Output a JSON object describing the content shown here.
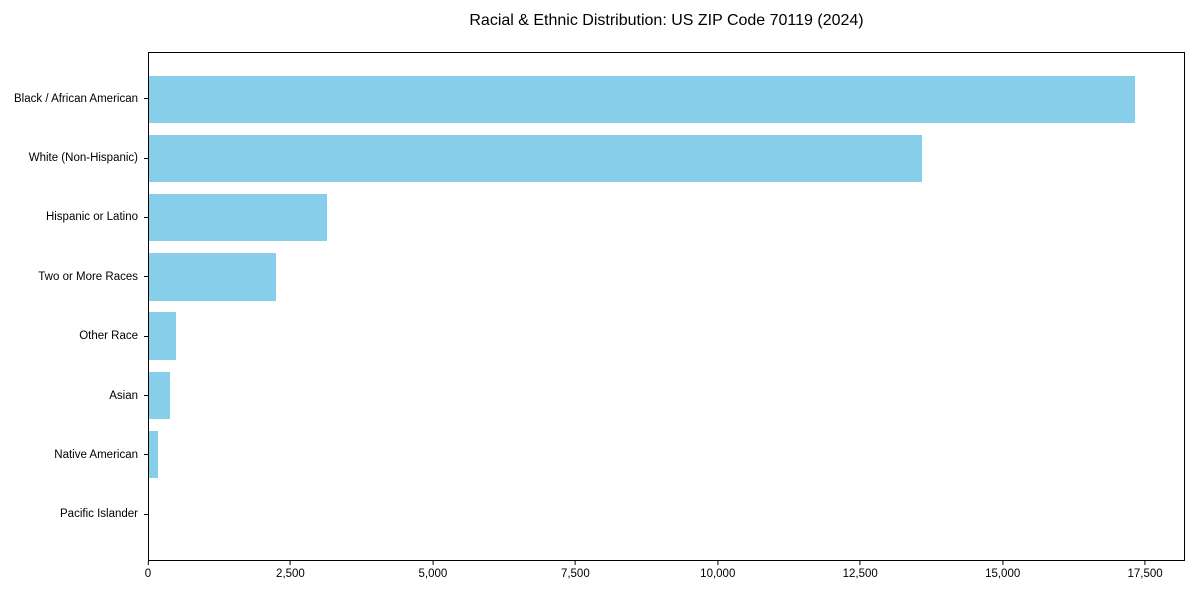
{
  "figure": {
    "title": "Racial & Ethnic Distribution: US ZIP Code 70119 (2024)"
  },
  "chart_data": {
    "type": "bar",
    "orientation": "horizontal",
    "title": "Racial & Ethnic Distribution: US ZIP Code 70119 (2024)",
    "categories": [
      "Black / African American",
      "White (Non-Hispanic)",
      "Hispanic or Latino",
      "Two or More Races",
      "Other Race",
      "Asian",
      "Native American",
      "Pacific Islander"
    ],
    "values": [
      17340,
      13590,
      3130,
      2230,
      470,
      370,
      155,
      0
    ],
    "xlabel": "",
    "ylabel": "",
    "xlim": [
      0,
      18200
    ],
    "x_ticks": [
      0,
      2500,
      5000,
      7500,
      10000,
      12500,
      15000,
      17500
    ],
    "x_tick_labels": [
      "0",
      "2,500",
      "5,000",
      "7,500",
      "10,000",
      "12,500",
      "15,000",
      "17,500"
    ],
    "bar_color": "#87CEEB",
    "axis_color": "#000000",
    "grid": false,
    "legend": null
  }
}
